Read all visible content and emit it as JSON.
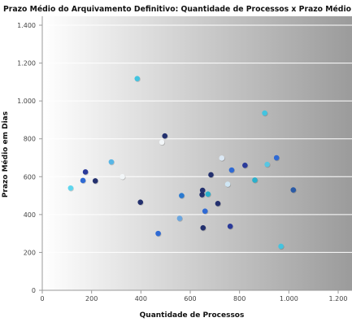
{
  "chart_data": {
    "type": "scatter",
    "title": "Prazo Médio do Arquivamento Definitivo: Quantidade de Processos x Prazo Médio",
    "xlabel": "Quantidade de Processos",
    "ylabel": "Prazo Médio em Dias",
    "xlim": [
      0,
      1200
    ],
    "ylim": [
      0,
      1450
    ],
    "x_ticks": [
      {
        "value": 0,
        "label": "0"
      },
      {
        "value": 200,
        "label": "200"
      },
      {
        "value": 400,
        "label": "400"
      },
      {
        "value": 600,
        "label": "600"
      },
      {
        "value": 800,
        "label": "800"
      },
      {
        "value": 1000,
        "label": "1.000"
      },
      {
        "value": 1200,
        "label": "1.200"
      }
    ],
    "y_ticks": [
      {
        "value": 0,
        "label": "0"
      },
      {
        "value": 200,
        "label": "200"
      },
      {
        "value": 400,
        "label": "400"
      },
      {
        "value": 600,
        "label": "600"
      },
      {
        "value": 800,
        "label": "800"
      },
      {
        "value": 1000,
        "label": "1.000"
      },
      {
        "value": 1200,
        "label": "1.200"
      },
      {
        "value": 1400,
        "label": "1.400"
      }
    ],
    "grid": {
      "horizontal": true,
      "vertical": false
    },
    "legend": "none",
    "points": [
      {
        "x": 115,
        "y": 540,
        "color": "#5ed6ee"
      },
      {
        "x": 165,
        "y": 580,
        "color": "#2f6ad4"
      },
      {
        "x": 175,
        "y": 625,
        "color": "#2a3a9a"
      },
      {
        "x": 215,
        "y": 578,
        "color": "#23306e"
      },
      {
        "x": 280,
        "y": 678,
        "color": "#58b6e6"
      },
      {
        "x": 325,
        "y": 600,
        "color": "#f2f6f8"
      },
      {
        "x": 385,
        "y": 1118,
        "color": "#43c4e0"
      },
      {
        "x": 398,
        "y": 465,
        "color": "#23306e"
      },
      {
        "x": 470,
        "y": 300,
        "color": "#2f6ad4"
      },
      {
        "x": 485,
        "y": 782,
        "color": "#f2f6f8"
      },
      {
        "x": 497,
        "y": 815,
        "color": "#23306e"
      },
      {
        "x": 557,
        "y": 380,
        "color": "#6ba6e0"
      },
      {
        "x": 565,
        "y": 500,
        "color": "#2a7ad0"
      },
      {
        "x": 648,
        "y": 505,
        "color": "#23306e"
      },
      {
        "x": 650,
        "y": 528,
        "color": "#23306e"
      },
      {
        "x": 652,
        "y": 330,
        "color": "#23306e"
      },
      {
        "x": 660,
        "y": 418,
        "color": "#2f6ad4"
      },
      {
        "x": 672,
        "y": 508,
        "color": "#2ab0cc"
      },
      {
        "x": 684,
        "y": 610,
        "color": "#23306e"
      },
      {
        "x": 712,
        "y": 458,
        "color": "#23306e"
      },
      {
        "x": 728,
        "y": 698,
        "color": "#dbe8f4"
      },
      {
        "x": 752,
        "y": 560,
        "color": "#cfe6f4"
      },
      {
        "x": 762,
        "y": 338,
        "color": "#2a3a9a"
      },
      {
        "x": 768,
        "y": 635,
        "color": "#2f6ad4"
      },
      {
        "x": 822,
        "y": 660,
        "color": "#2a3a9a"
      },
      {
        "x": 862,
        "y": 582,
        "color": "#2ab0cc"
      },
      {
        "x": 902,
        "y": 936,
        "color": "#43c4e0"
      },
      {
        "x": 912,
        "y": 665,
        "color": "#58c6e2"
      },
      {
        "x": 950,
        "y": 700,
        "color": "#2f6ad4"
      },
      {
        "x": 968,
        "y": 232,
        "color": "#43c4e0"
      },
      {
        "x": 1018,
        "y": 530,
        "color": "#2a5aa6"
      }
    ]
  },
  "colors": {
    "background_left": "#ffffff",
    "background_right": "#9b9b9b",
    "grid": "#ffffff",
    "axis": "#9a9a9a"
  }
}
